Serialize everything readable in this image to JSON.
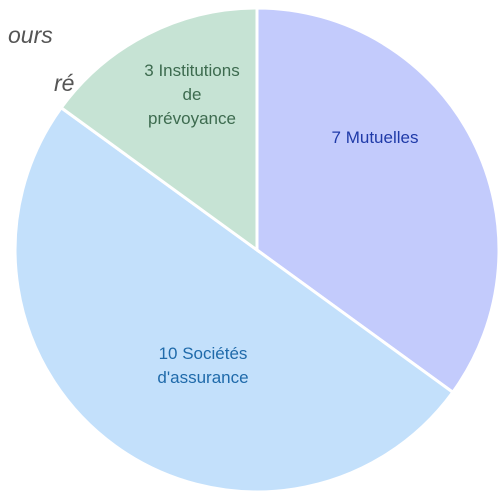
{
  "chart_data": {
    "type": "pie",
    "annotations": [
      "ours",
      "ré"
    ],
    "values": [
      7,
      10,
      3
    ],
    "value_labels": [
      "7 Mutuelles",
      "10 Sociétés d'assurance",
      "3 Institutions de prévoyance"
    ],
    "colors": [
      "#c3cbfc",
      "#c3e0fb",
      "#c6e3d4"
    ],
    "label_colors": [
      "#1f3aa8",
      "#1f6aaa",
      "#3d6b4f"
    ]
  }
}
